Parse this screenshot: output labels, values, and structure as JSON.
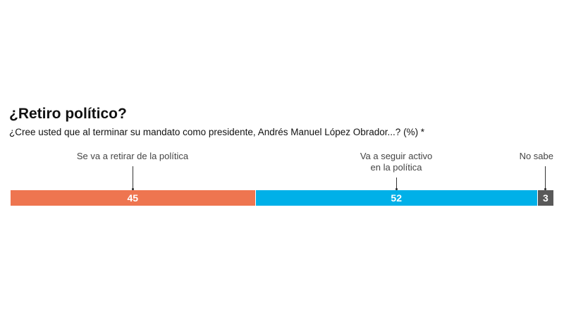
{
  "chart_data": {
    "type": "bar",
    "orientation": "horizontal-stacked",
    "title": "¿Retiro político?",
    "subtitle": "¿Cree usted que al terminar su mandato como presidente, Andrés Manuel López Obrador...? (%) *",
    "categories": [
      "Se va a retirar de la política",
      "Va a seguir activo en la política",
      "No sabe"
    ],
    "label_lines": [
      [
        "Se va a retirar de la política"
      ],
      [
        "Va a seguir activo",
        "en la política"
      ],
      [
        "No sabe"
      ]
    ],
    "values": [
      45,
      52,
      3
    ],
    "value_labels": [
      "45",
      "52",
      "3"
    ],
    "colors": [
      "#ee7550",
      "#00b0e8",
      "#595959"
    ],
    "xlim": [
      0,
      100
    ]
  }
}
